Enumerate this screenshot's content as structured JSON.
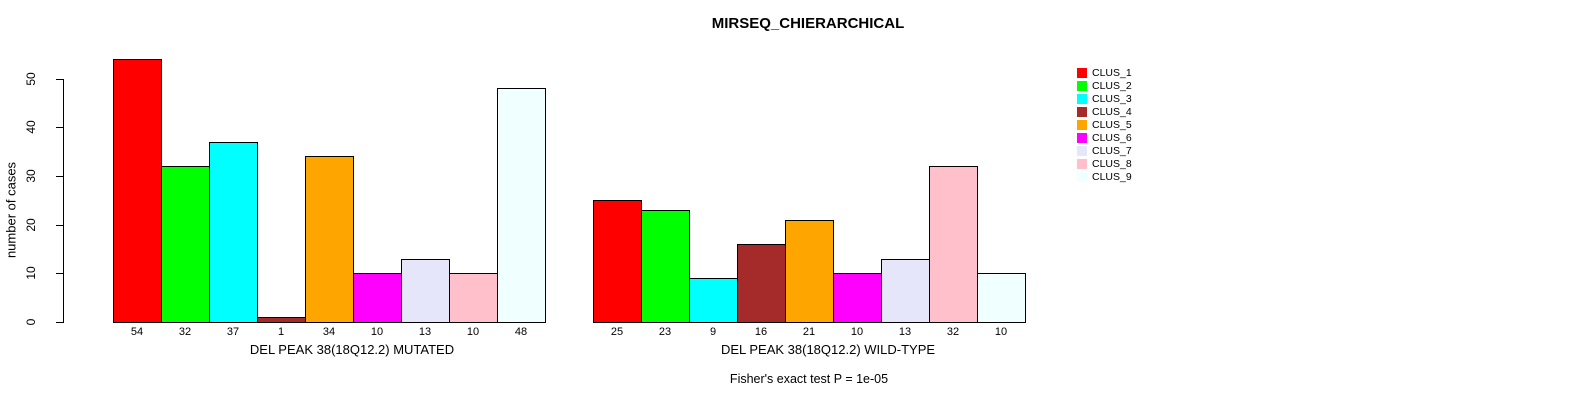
{
  "title": "MIRSEQ_CHIERARCHICAL",
  "caption": "Fisher's exact test P = 1e-05",
  "y_axis": {
    "label": "number of cases",
    "ticks": [
      0,
      10,
      20,
      30,
      40,
      50
    ]
  },
  "legend": {
    "entries": [
      {
        "label": "CLUS_1",
        "color": "#FF0000"
      },
      {
        "label": "CLUS_2",
        "color": "#00FF00"
      },
      {
        "label": "CLUS_3",
        "color": "#00FFFF"
      },
      {
        "label": "CLUS_4",
        "color": "#A52A2A"
      },
      {
        "label": "CLUS_5",
        "color": "#FFA500"
      },
      {
        "label": "CLUS_6",
        "color": "#FF00FF"
      },
      {
        "label": "CLUS_7",
        "color": "#E6E6FA"
      },
      {
        "label": "CLUS_8",
        "color": "#FFC0CB"
      },
      {
        "label": "CLUS_9",
        "color": "#F0FFFF"
      }
    ]
  },
  "chart_data": {
    "type": "bar",
    "title": "MIRSEQ_CHIERARCHICAL",
    "ylabel": "number of cases",
    "ylim": [
      0,
      50
    ],
    "yticks": [
      0,
      10,
      20,
      30,
      40,
      50
    ],
    "grid": false,
    "legend_position": "right",
    "series_labels": [
      "CLUS_1",
      "CLUS_2",
      "CLUS_3",
      "CLUS_4",
      "CLUS_5",
      "CLUS_6",
      "CLUS_7",
      "CLUS_8",
      "CLUS_9"
    ],
    "colors": [
      "#FF0000",
      "#00FF00",
      "#00FFFF",
      "#A52A2A",
      "#FFA500",
      "#FF00FF",
      "#E6E6FA",
      "#FFC0CB",
      "#F0FFFF"
    ],
    "groups": [
      {
        "xlabel": "DEL PEAK 38(18Q12.2) MUTATED",
        "values": [
          54,
          32,
          37,
          1,
          34,
          10,
          13,
          10,
          48
        ]
      },
      {
        "xlabel": "DEL PEAK 38(18Q12.2) WILD-TYPE",
        "values": [
          25,
          23,
          9,
          16,
          21,
          10,
          13,
          32,
          10
        ]
      }
    ],
    "annotation": "Fisher's exact test P = 1e-05"
  }
}
